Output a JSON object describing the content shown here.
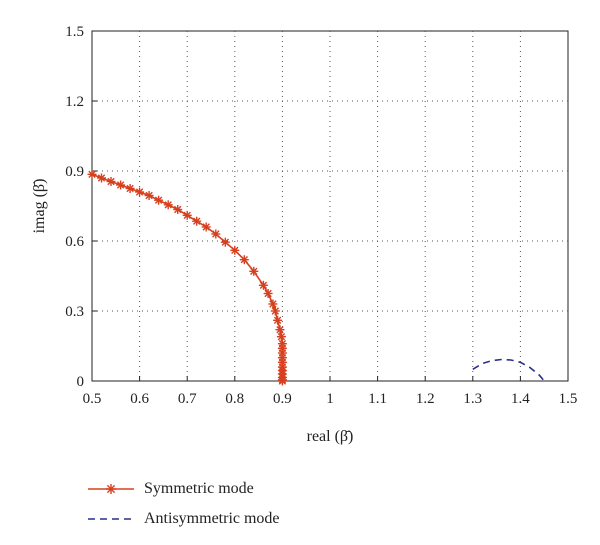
{
  "chart_data": {
    "type": "line",
    "xlabel": "real (β̄)",
    "ylabel": "imag (β̄)",
    "xlim": [
      0.5,
      1.5
    ],
    "ylim": [
      0,
      1.5
    ],
    "x_ticks": [
      "0.5",
      "0.6",
      "0.7",
      "0.8",
      "0.9",
      "1",
      "1.1",
      "1.2",
      "1.3",
      "1.4",
      "1.5"
    ],
    "y_ticks": [
      "0",
      "0.3",
      "0.6",
      "0.9",
      "1.2",
      "1.5"
    ],
    "grid": true,
    "legend_position": "bottom-left",
    "series": [
      {
        "name": "Symmetric mode",
        "color": "#d6401f",
        "style": "solid-star-markers",
        "x": [
          0.5,
          0.52,
          0.54,
          0.56,
          0.58,
          0.6,
          0.62,
          0.64,
          0.66,
          0.68,
          0.7,
          0.72,
          0.74,
          0.76,
          0.78,
          0.8,
          0.82,
          0.84,
          0.86,
          0.87,
          0.88,
          0.885,
          0.89,
          0.895,
          0.898,
          0.9,
          0.9,
          0.9,
          0.9,
          0.9,
          0.9,
          0.9,
          0.9,
          0.9,
          0.9,
          0.9
        ],
        "y": [
          0.886,
          0.87,
          0.855,
          0.84,
          0.825,
          0.81,
          0.795,
          0.775,
          0.755,
          0.735,
          0.71,
          0.685,
          0.66,
          0.63,
          0.595,
          0.56,
          0.52,
          0.47,
          0.41,
          0.375,
          0.33,
          0.3,
          0.26,
          0.22,
          0.19,
          0.16,
          0.14,
          0.12,
          0.1,
          0.08,
          0.06,
          0.045,
          0.03,
          0.015,
          0.005,
          0.0
        ]
      },
      {
        "name": "Antisymmetric mode",
        "color": "#2b2e8c",
        "style": "dashed",
        "x": [
          1.3,
          1.32,
          1.34,
          1.36,
          1.38,
          1.4,
          1.42,
          1.44,
          1.45
        ],
        "y": [
          0.05,
          0.075,
          0.087,
          0.092,
          0.09,
          0.08,
          0.058,
          0.025,
          0.0
        ]
      }
    ]
  }
}
